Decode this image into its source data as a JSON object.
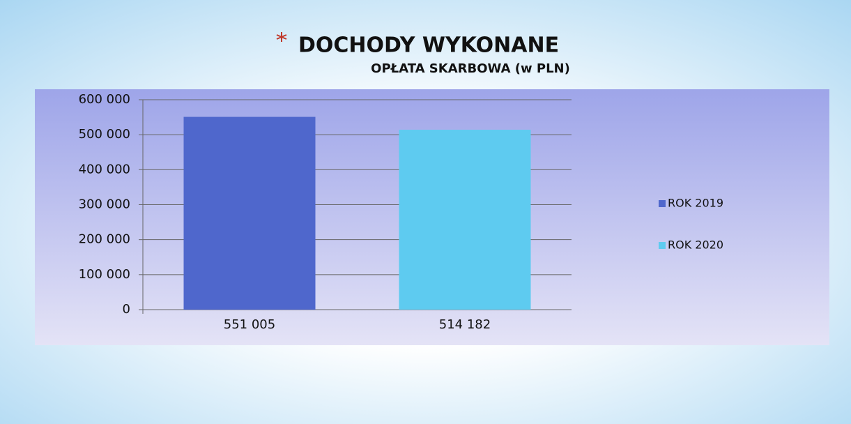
{
  "chart_data": {
    "type": "bar",
    "title": "DOCHODY WYKONANE",
    "subtitle": "OPŁATA SKARBOWA (w PLN)",
    "categories": [
      null
    ],
    "series": [
      {
        "name": "ROK 2019",
        "color": "#4f67cc",
        "values": [
          551005
        ],
        "value_labels": [
          "551 005"
        ]
      },
      {
        "name": "ROK 2020",
        "color": "#5ecbf0",
        "values": [
          514182
        ],
        "value_labels": [
          "514 182"
        ]
      }
    ],
    "ylim": [
      0,
      600000
    ],
    "yticks": [
      {
        "value": 0,
        "label": "0"
      },
      {
        "value": 100000,
        "label": "100 000"
      },
      {
        "value": 200000,
        "label": "200 000"
      },
      {
        "value": 300000,
        "label": "300 000"
      },
      {
        "value": 400000,
        "label": "400 000"
      },
      {
        "value": 500000,
        "label": "500 000"
      },
      {
        "value": 600000,
        "label": "600 000"
      }
    ],
    "grid": true,
    "legend": "right"
  }
}
